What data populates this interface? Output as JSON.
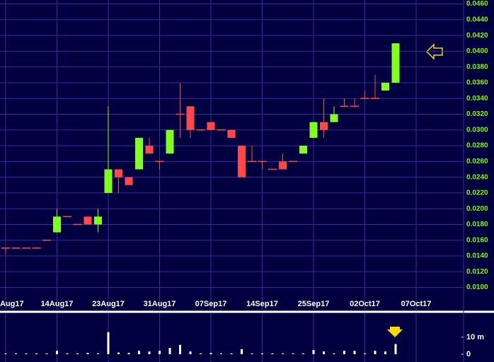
{
  "chart_data": {
    "type": "candlestick",
    "categories": [
      "Aug17",
      null,
      null,
      null,
      null,
      "14Aug17",
      null,
      null,
      null,
      null,
      "23Aug17",
      null,
      null,
      null,
      null,
      "31Aug17",
      null,
      null,
      null,
      null,
      "07Sep17",
      null,
      null,
      null,
      null,
      "14Sep17",
      null,
      null,
      null,
      null,
      "25Sep17",
      null,
      null,
      null,
      null,
      "02Oct17",
      null,
      null,
      null,
      null,
      "07Oct17"
    ],
    "open": [
      0.015,
      0.015,
      0.015,
      0.015,
      0.016,
      0.017,
      0.019,
      0.018,
      0.019,
      0.018,
      0.022,
      0.025,
      0.024,
      0.025,
      0.028,
      0.026,
      0.027,
      0.032,
      0.033,
      0.03,
      0.031,
      0.03,
      0.03,
      0.028,
      0.026,
      0.026,
      0.025,
      0.026,
      0.026,
      0.027,
      0.029,
      0.031,
      0.031,
      0.033,
      0.033,
      0.034,
      0.034,
      0.035,
      0.036,
      null,
      null
    ],
    "high": [
      0.015,
      0.015,
      0.015,
      0.015,
      0.016,
      0.02,
      0.019,
      0.018,
      0.019,
      0.02,
      0.033,
      0.025,
      0.024,
      0.029,
      0.029,
      0.026,
      0.03,
      0.036,
      0.033,
      0.03,
      0.031,
      0.03,
      0.03,
      0.028,
      0.028,
      0.026,
      0.025,
      0.027,
      0.026,
      0.028,
      0.031,
      0.034,
      0.033,
      0.034,
      0.034,
      0.035,
      0.037,
      0.036,
      0.041,
      null,
      null
    ],
    "low": [
      0.0142,
      0.015,
      0.015,
      0.015,
      0.016,
      0.017,
      0.019,
      0.018,
      0.018,
      0.017,
      0.022,
      0.022,
      0.023,
      0.025,
      0.027,
      0.025,
      0.027,
      0.029,
      0.029,
      0.03,
      0.03,
      0.03,
      0.029,
      0.024,
      0.026,
      0.025,
      0.025,
      0.025,
      0.026,
      0.027,
      0.029,
      0.029,
      0.031,
      0.033,
      0.033,
      0.034,
      0.034,
      0.035,
      0.036,
      null,
      null
    ],
    "close": [
      0.015,
      0.015,
      0.015,
      0.015,
      0.016,
      0.019,
      0.019,
      0.018,
      0.018,
      0.019,
      0.025,
      0.024,
      0.023,
      0.029,
      0.027,
      0.026,
      0.03,
      0.032,
      0.03,
      0.03,
      0.03,
      0.03,
      0.029,
      0.024,
      0.026,
      0.026,
      0.025,
      0.025,
      0.026,
      0.028,
      0.031,
      0.03,
      0.032,
      0.033,
      0.033,
      0.034,
      0.034,
      0.036,
      0.041,
      null,
      null
    ],
    "volume": [
      0.5,
      0.5,
      0.5,
      0.5,
      0.5,
      2,
      0.5,
      0.5,
      0.8,
      0.5,
      13,
      1,
      0.8,
      2,
      1.6,
      2,
      3.7,
      5.5,
      1.6,
      0.5,
      0.8,
      0.5,
      0.5,
      3,
      0.5,
      0.5,
      0.5,
      0.5,
      0.5,
      0.5,
      2.5,
      1.6,
      0.5,
      2,
      2,
      0.5,
      2,
      1.6,
      6,
      null,
      null
    ],
    "ylim": [
      0.007,
      0.0465
    ],
    "yticks": [
      {
        "value": 0.046,
        "label": "0.0460"
      },
      {
        "value": 0.044,
        "label": "0.0440"
      },
      {
        "value": 0.042,
        "label": "0.0420"
      },
      {
        "value": 0.04,
        "label": "0.0400"
      },
      {
        "value": 0.038,
        "label": "0.0380"
      },
      {
        "value": 0.036,
        "label": "0.0360"
      },
      {
        "value": 0.034,
        "label": "0.0340"
      },
      {
        "value": 0.032,
        "label": "0.0320"
      },
      {
        "value": 0.03,
        "label": "0.0300"
      },
      {
        "value": 0.028,
        "label": "0.0280"
      },
      {
        "value": 0.026,
        "label": "0.0260"
      },
      {
        "value": 0.024,
        "label": "0.0240"
      },
      {
        "value": 0.022,
        "label": "0.0220"
      },
      {
        "value": 0.02,
        "label": "0.0200"
      },
      {
        "value": 0.018,
        "label": "0.0180"
      },
      {
        "value": 0.016,
        "label": "0.0160"
      },
      {
        "value": 0.014,
        "label": "0.0140"
      },
      {
        "value": 0.012,
        "label": "0.0120"
      },
      {
        "value": 0.01,
        "label": "0.0100"
      }
    ],
    "volume_ylim": [
      0,
      22
    ],
    "volume_ticks": [
      {
        "value": 10,
        "label": "10 m"
      },
      0
    ],
    "up_color": "#80ff20",
    "down_color": "#ff4848",
    "grid": true
  }
}
